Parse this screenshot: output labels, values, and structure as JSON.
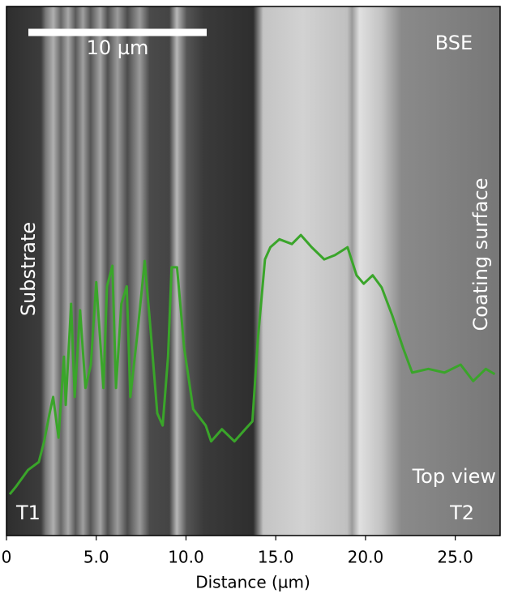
{
  "chart_data": {
    "type": "line",
    "x_label": "Distance (µm)",
    "annotations": {
      "scale_bar": "10 µm",
      "detector": "BSE",
      "left": "Substrate",
      "right": "Coating surface",
      "view": "Top view",
      "start": "T1",
      "end": "T2"
    },
    "xlim": [
      0,
      27.5
    ],
    "xticks": [
      0,
      {
        "value": 5,
        "label": "5.0"
      },
      {
        "value": 10,
        "label": "10.0"
      },
      {
        "value": 15,
        "label": "15.0"
      },
      {
        "value": 20,
        "label": "20.0"
      },
      {
        "value": 25,
        "label": "25.0"
      }
    ],
    "ylim": [
      0,
      100
    ],
    "series": [
      {
        "color": "#3aa52a",
        "x": [
          0.18,
          0.54,
          1.2,
          1.8,
          2.1,
          2.4,
          2.6,
          2.9,
          3.2,
          3.3,
          3.6,
          3.8,
          4.1,
          4.4,
          4.7,
          5.0,
          5.4,
          5.6,
          5.9,
          6.1,
          6.4,
          6.7,
          6.9,
          7.3,
          7.7,
          8.0,
          8.4,
          8.7,
          9.0,
          9.2,
          9.5,
          9.9,
          10.4,
          11.1,
          11.4,
          12.0,
          12.7,
          13.3,
          13.7,
          14.0,
          14.4,
          14.7,
          15.2,
          15.9,
          16.4,
          17.0,
          17.7,
          18.3,
          19.0,
          19.5,
          19.9,
          20.4,
          20.9,
          21.5,
          22.1,
          22.6,
          23.5,
          24.4,
          25.3,
          26.0,
          26.7,
          27.2
        ],
        "values": [
          7.8,
          9.3,
          12.4,
          13.9,
          17.8,
          23.1,
          26.2,
          18.5,
          33.8,
          24.7,
          43.8,
          26.2,
          42.6,
          27.9,
          32.3,
          47.9,
          27.9,
          47.1,
          51.0,
          27.9,
          43.8,
          47.1,
          26.2,
          38.4,
          51.9,
          40.0,
          23.1,
          20.8,
          33.8,
          50.7,
          50.7,
          35.4,
          23.9,
          20.8,
          17.8,
          20.1,
          17.8,
          20.1,
          21.6,
          36.9,
          52.2,
          54.5,
          56.0,
          55.1,
          56.8,
          54.5,
          52.2,
          53.0,
          54.5,
          49.2,
          47.6,
          49.2,
          46.9,
          41.5,
          35.4,
          30.8,
          31.5,
          30.8,
          32.3,
          29.2,
          31.5,
          30.5
        ]
      }
    ]
  }
}
